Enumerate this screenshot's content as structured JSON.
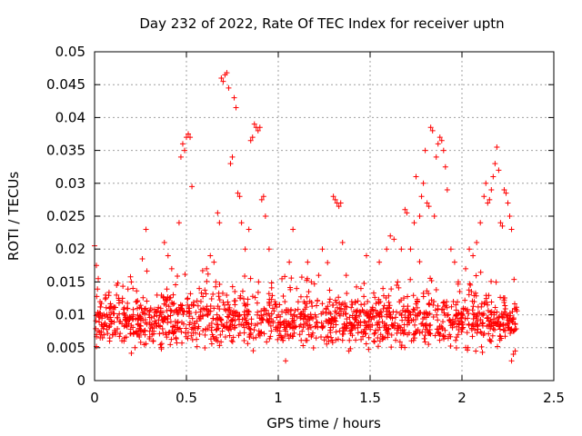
{
  "chart_data": {
    "type": "scatter",
    "title": "Day 232 of 2022, Rate Of TEC Index for receiver uptn",
    "xlabel": "GPS time / hours",
    "ylabel": "ROTI / TECUs",
    "xlim": [
      0,
      2.5
    ],
    "ylim": [
      0,
      0.05
    ],
    "x_ticks": [
      0,
      0.5,
      1,
      1.5,
      2,
      2.5
    ],
    "x_tick_labels": [
      "0",
      "0.5",
      "1",
      "1.5",
      "2",
      "2.5"
    ],
    "y_ticks": [
      0,
      0.005,
      0.01,
      0.015,
      0.02,
      0.025,
      0.03,
      0.035,
      0.04,
      0.045,
      0.05
    ],
    "y_tick_labels": [
      "0",
      "0.005",
      "0.01",
      "0.015",
      "0.02",
      "0.025",
      "0.03",
      "0.035",
      "0.04",
      "0.045",
      "0.05"
    ],
    "grid": true,
    "marker": "+",
    "series": [
      {
        "name": "ROTI",
        "color": "#ff0000",
        "points": [
          [
            0.0,
            0.0205
          ],
          [
            0.01,
            0.0175
          ],
          [
            0.02,
            0.0155
          ],
          [
            0.03,
            0.012
          ],
          [
            0.04,
            0.0095
          ],
          [
            0.05,
            0.0085
          ],
          [
            0.06,
            0.013
          ],
          [
            0.08,
            0.01
          ],
          [
            0.1,
            0.007
          ],
          [
            0.12,
            0.0145
          ],
          [
            0.14,
            0.009
          ],
          [
            0.16,
            0.006
          ],
          [
            0.18,
            0.011
          ],
          [
            0.2,
            0.015
          ],
          [
            0.22,
            0.005
          ],
          [
            0.24,
            0.0095
          ],
          [
            0.26,
            0.0185
          ],
          [
            0.28,
            0.023
          ],
          [
            0.3,
            0.0075
          ],
          [
            0.32,
            0.006
          ],
          [
            0.34,
            0.013
          ],
          [
            0.36,
            0.011
          ],
          [
            0.38,
            0.021
          ],
          [
            0.4,
            0.019
          ],
          [
            0.42,
            0.017
          ],
          [
            0.44,
            0.009
          ],
          [
            0.46,
            0.024
          ],
          [
            0.47,
            0.034
          ],
          [
            0.48,
            0.036
          ],
          [
            0.49,
            0.035
          ],
          [
            0.5,
            0.037
          ],
          [
            0.51,
            0.0375
          ],
          [
            0.52,
            0.037
          ],
          [
            0.53,
            0.0295
          ],
          [
            0.55,
            0.008
          ],
          [
            0.57,
            0.014
          ],
          [
            0.59,
            0.011
          ],
          [
            0.61,
            0.017
          ],
          [
            0.63,
            0.019
          ],
          [
            0.65,
            0.018
          ],
          [
            0.66,
            0.015
          ],
          [
            0.67,
            0.0255
          ],
          [
            0.68,
            0.024
          ],
          [
            0.69,
            0.046
          ],
          [
            0.7,
            0.0455
          ],
          [
            0.71,
            0.0465
          ],
          [
            0.72,
            0.0468
          ],
          [
            0.73,
            0.0445
          ],
          [
            0.74,
            0.033
          ],
          [
            0.75,
            0.034
          ],
          [
            0.76,
            0.043
          ],
          [
            0.77,
            0.0415
          ],
          [
            0.78,
            0.0285
          ],
          [
            0.79,
            0.028
          ],
          [
            0.8,
            0.024
          ],
          [
            0.82,
            0.02
          ],
          [
            0.84,
            0.023
          ],
          [
            0.85,
            0.0365
          ],
          [
            0.86,
            0.037
          ],
          [
            0.87,
            0.039
          ],
          [
            0.88,
            0.0385
          ],
          [
            0.89,
            0.038
          ],
          [
            0.9,
            0.0385
          ],
          [
            0.91,
            0.0275
          ],
          [
            0.92,
            0.028
          ],
          [
            0.93,
            0.025
          ],
          [
            0.95,
            0.02
          ],
          [
            0.97,
            0.011
          ],
          [
            1.0,
            0.008
          ],
          [
            1.02,
            0.0065
          ],
          [
            1.04,
            0.003
          ],
          [
            1.06,
            0.018
          ],
          [
            1.08,
            0.023
          ],
          [
            1.1,
            0.014
          ],
          [
            1.12,
            0.0095
          ],
          [
            1.14,
            0.012
          ],
          [
            1.16,
            0.018
          ],
          [
            1.18,
            0.015
          ],
          [
            1.2,
            0.01
          ],
          [
            1.22,
            0.016
          ],
          [
            1.24,
            0.02
          ],
          [
            1.26,
            0.011
          ],
          [
            1.28,
            0.009
          ],
          [
            1.3,
            0.028
          ],
          [
            1.31,
            0.0275
          ],
          [
            1.32,
            0.027
          ],
          [
            1.33,
            0.0265
          ],
          [
            1.34,
            0.027
          ],
          [
            1.35,
            0.021
          ],
          [
            1.37,
            0.016
          ],
          [
            1.4,
            0.012
          ],
          [
            1.42,
            0.008
          ],
          [
            1.45,
            0.014
          ],
          [
            1.48,
            0.019
          ],
          [
            1.5,
            0.0085
          ],
          [
            1.52,
            0.006
          ],
          [
            1.55,
            0.018
          ],
          [
            1.57,
            0.014
          ],
          [
            1.59,
            0.02
          ],
          [
            1.61,
            0.022
          ],
          [
            1.63,
            0.0215
          ],
          [
            1.65,
            0.015
          ],
          [
            1.67,
            0.02
          ],
          [
            1.69,
            0.026
          ],
          [
            1.7,
            0.0255
          ],
          [
            1.72,
            0.02
          ],
          [
            1.74,
            0.024
          ],
          [
            1.75,
            0.031
          ],
          [
            1.77,
            0.025
          ],
          [
            1.78,
            0.028
          ],
          [
            1.79,
            0.03
          ],
          [
            1.8,
            0.035
          ],
          [
            1.81,
            0.027
          ],
          [
            1.82,
            0.0265
          ],
          [
            1.83,
            0.0385
          ],
          [
            1.84,
            0.038
          ],
          [
            1.85,
            0.025
          ],
          [
            1.86,
            0.034
          ],
          [
            1.87,
            0.036
          ],
          [
            1.88,
            0.037
          ],
          [
            1.89,
            0.0365
          ],
          [
            1.9,
            0.035
          ],
          [
            1.91,
            0.0325
          ],
          [
            1.92,
            0.029
          ],
          [
            1.94,
            0.02
          ],
          [
            1.96,
            0.018
          ],
          [
            1.98,
            0.015
          ],
          [
            2.0,
            0.01
          ],
          [
            2.02,
            0.017
          ],
          [
            2.04,
            0.02
          ],
          [
            2.06,
            0.019
          ],
          [
            2.08,
            0.021
          ],
          [
            2.1,
            0.024
          ],
          [
            2.12,
            0.028
          ],
          [
            2.13,
            0.03
          ],
          [
            2.14,
            0.027
          ],
          [
            2.15,
            0.0275
          ],
          [
            2.16,
            0.029
          ],
          [
            2.17,
            0.031
          ],
          [
            2.18,
            0.033
          ],
          [
            2.19,
            0.0355
          ],
          [
            2.2,
            0.032
          ],
          [
            2.21,
            0.024
          ],
          [
            2.22,
            0.0235
          ],
          [
            2.23,
            0.029
          ],
          [
            2.24,
            0.0285
          ],
          [
            2.25,
            0.027
          ],
          [
            2.26,
            0.025
          ],
          [
            2.27,
            0.023
          ],
          [
            2.28,
            0.004
          ],
          [
            2.29,
            0.0045
          ],
          [
            2.27,
            0.003
          ]
        ]
      }
    ],
    "dense_band": {
      "description": "bulk of points concentrated between 0.004 and 0.014 across 0 to 2.3 hours",
      "x_range": [
        0,
        2.3
      ],
      "y_center": 0.009,
      "y_spread": 0.0035,
      "count": 1400
    }
  }
}
